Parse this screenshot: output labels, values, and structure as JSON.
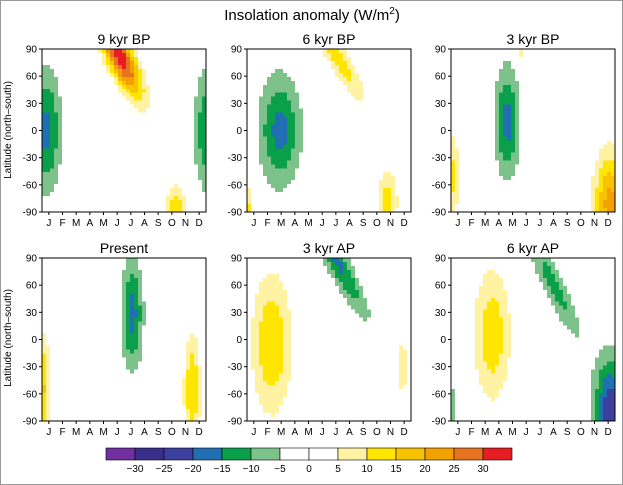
{
  "chart_data": {
    "type": "heatmap",
    "title": "Insolation anomaly (W/m²)",
    "title_parts": {
      "main": "Insolation anomaly (W/m",
      "sup": "2",
      "close": ")"
    },
    "ylabel": "Latitude (north–south)",
    "x_ticks": [
      "J",
      "F",
      "M",
      "A",
      "M",
      "J",
      "J",
      "A",
      "S",
      "O",
      "N",
      "D"
    ],
    "y_ticks": [
      90,
      60,
      30,
      0,
      -30,
      -60,
      -90
    ],
    "y_range": [
      -90,
      90
    ],
    "contour_levels": [
      -30,
      -25,
      -20,
      -15,
      -10,
      -5,
      0,
      5,
      10,
      15,
      20,
      25,
      30
    ],
    "colorbar": {
      "labels": [
        "−30",
        "−25",
        "−20",
        "−15",
        "−10",
        "−5",
        "0",
        "5",
        "10",
        "15",
        "20",
        "25",
        "30"
      ],
      "colors": [
        "#7030a0",
        "#3a2e8c",
        "#3c3f9e",
        "#1f6fb2",
        "#0aa04a",
        "#7dc28b",
        "#ffffff",
        "#ffffff",
        "#fff3a3",
        "#ffe500",
        "#f7c300",
        "#f2a100",
        "#e8731e",
        "#e81c24"
      ]
    },
    "panels": [
      {
        "title": "9 kyr BP",
        "features": [
          {
            "peak": 34,
            "month": 5.7,
            "lat": 82,
            "sm": 1.0,
            "sl": 45,
            "tilt": -50
          },
          {
            "peak": -17,
            "month": 0.3,
            "lat": 0,
            "sm": 1.1,
            "sl": 65,
            "tilt": 0
          },
          {
            "peak": -17,
            "month": 12.3,
            "lat": 0,
            "sm": 1.1,
            "sl": 65,
            "tilt": 0
          },
          {
            "peak": 14,
            "month": 9.8,
            "lat": -85,
            "sm": 0.7,
            "sl": 25,
            "tilt": 0
          }
        ]
      },
      {
        "title": "6 kyr BP",
        "features": [
          {
            "peak": -17,
            "month": 2.4,
            "lat": 0,
            "sm": 1.5,
            "sl": 60,
            "tilt": 0
          },
          {
            "peak": 13,
            "month": 6.5,
            "lat": 85,
            "sm": 0.9,
            "sl": 55,
            "tilt": -65
          },
          {
            "peak": 13,
            "month": 10.3,
            "lat": -80,
            "sm": 0.7,
            "sl": 35,
            "tilt": 0
          },
          {
            "peak": 12,
            "month": 0.0,
            "lat": -85,
            "sm": 0.4,
            "sl": 25,
            "tilt": 0
          }
        ]
      },
      {
        "title": "3 kyr BP",
        "features": [
          {
            "peak": -17,
            "month": 4.1,
            "lat": 10,
            "sm": 0.9,
            "sl": 60,
            "tilt": 0
          },
          {
            "peak": 22,
            "month": 11.6,
            "lat": -80,
            "sm": 1.1,
            "sl": 55,
            "tilt": 0
          },
          {
            "peak": 12,
            "month": 0.2,
            "lat": -50,
            "sm": 0.4,
            "sl": 45,
            "tilt": 0
          },
          {
            "peak": 8,
            "month": 5.2,
            "lat": 90,
            "sm": 0.3,
            "sl": 25,
            "tilt": 0
          }
        ]
      },
      {
        "title": "Present",
        "features": [
          {
            "peak": -17,
            "month": 6.6,
            "lat": 28,
            "sm": 0.8,
            "sl": 60,
            "tilt": 0
          },
          {
            "peak": 16,
            "month": 0.0,
            "lat": -55,
            "sm": 0.6,
            "sl": 60,
            "tilt": 0
          },
          {
            "peak": 15,
            "month": 11.0,
            "lat": -55,
            "sm": 0.6,
            "sl": 60,
            "tilt": 0
          }
        ]
      },
      {
        "title": "3 kyr AP",
        "features": [
          {
            "peak": 15,
            "month": 1.8,
            "lat": -5,
            "sm": 1.4,
            "sl": 75,
            "tilt": 0
          },
          {
            "peak": -16,
            "month": 6.6,
            "lat": 85,
            "sm": 0.9,
            "sl": 60,
            "tilt": -60
          },
          {
            "peak": 7,
            "month": 11.4,
            "lat": -30,
            "sm": 0.4,
            "sl": 50,
            "tilt": 0
          }
        ]
      },
      {
        "title": "6 kyr AP",
        "features": [
          {
            "peak": 14,
            "month": 3.0,
            "lat": 5,
            "sm": 1.3,
            "sl": 70,
            "tilt": 0
          },
          {
            "peak": -25,
            "month": 11.7,
            "lat": -82,
            "sm": 1.2,
            "sl": 60,
            "tilt": 0
          },
          {
            "peak": -12,
            "month": 7.5,
            "lat": 60,
            "sm": 0.9,
            "sl": 60,
            "tilt": -55
          },
          {
            "peak": -8,
            "month": 0.1,
            "lat": -75,
            "sm": 0.5,
            "sl": 30,
            "tilt": 0
          }
        ]
      }
    ]
  }
}
